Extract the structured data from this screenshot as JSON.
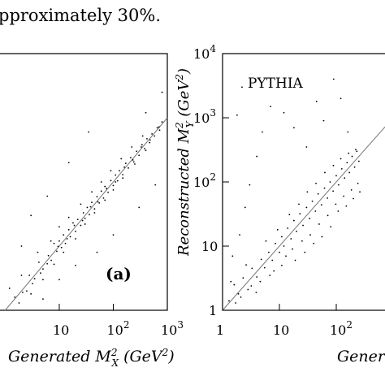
{
  "caption_fragment": "pproximately 30%.",
  "chart_data": [
    {
      "id": "a",
      "type": "scatter",
      "panel_label": "(a)",
      "xlabel": "Generated M_X^2 (GeV^2)",
      "ylabel": "",
      "x_scale": "log",
      "y_scale": "log",
      "xlim": [
        0.8,
        1000
      ],
      "ylim": [
        1,
        10000
      ],
      "x_ticks": [
        {
          "value": 10,
          "base": "10",
          "exp": ""
        },
        {
          "value": 100,
          "base": "10",
          "exp": "2"
        },
        {
          "value": 1000,
          "base": "10",
          "exp": "3"
        }
      ],
      "y_ticks": [],
      "reference_line": "y = x",
      "series": [
        {
          "points": [
            [
              1.5,
              1.6
            ],
            [
              2.1,
              1.9
            ],
            [
              2.8,
              3.5
            ],
            [
              3.5,
              3.1
            ],
            [
              4.2,
              5.6
            ],
            [
              5.0,
              4.4
            ],
            [
              6.3,
              7.1
            ],
            [
              7.1,
              6.0
            ],
            [
              8.0,
              11.0
            ],
            [
              9.0,
              8.3
            ],
            [
              10,
              12
            ],
            [
              11,
              9.5
            ],
            [
              12,
              15
            ],
            [
              13,
              11
            ],
            [
              15,
              18
            ],
            [
              16,
              14
            ],
            [
              18,
              23
            ],
            [
              20,
              17
            ],
            [
              22,
              26
            ],
            [
              25,
              21
            ],
            [
              28,
              33
            ],
            [
              30,
              27
            ],
            [
              33,
              40
            ],
            [
              36,
              31
            ],
            [
              40,
              48
            ],
            [
              45,
              38
            ],
            [
              50,
              59
            ],
            [
              55,
              47
            ],
            [
              60,
              72
            ],
            [
              66,
              56
            ],
            [
              70,
              85
            ],
            [
              80,
              69
            ],
            [
              90,
              105
            ],
            [
              100,
              88
            ],
            [
              110,
              128
            ],
            [
              120,
              104
            ],
            [
              130,
              150
            ],
            [
              150,
              130
            ],
            [
              170,
              195
            ],
            [
              190,
              165
            ],
            [
              210,
              240
            ],
            [
              240,
              205
            ],
            [
              270,
              300
            ],
            [
              300,
              260
            ],
            [
              340,
              380
            ],
            [
              380,
              330
            ],
            [
              420,
              470
            ],
            [
              470,
              410
            ],
            [
              520,
              560
            ],
            [
              580,
              520
            ],
            [
              650,
              700
            ],
            [
              720,
              640
            ],
            [
              800,
              860
            ],
            [
              3,
              1.8
            ],
            [
              5,
              3.0
            ],
            [
              8,
              5.2
            ],
            [
              12,
              8.0
            ],
            [
              20,
              13
            ],
            [
              30,
              22
            ],
            [
              45,
              33
            ],
            [
              70,
              52
            ],
            [
              100,
              75
            ],
            [
              150,
              115
            ],
            [
              250,
              190
            ],
            [
              400,
              310
            ],
            [
              2,
              3.5
            ],
            [
              4,
              8
            ],
            [
              7,
              12
            ],
            [
              10,
              20
            ],
            [
              15,
              28
            ],
            [
              25,
              45
            ],
            [
              40,
              70
            ],
            [
              60,
              100
            ],
            [
              90,
              150
            ],
            [
              140,
              230
            ],
            [
              220,
              350
            ],
            [
              350,
              520
            ],
            [
              1.2,
              2.2
            ],
            [
              1.8,
              1.3
            ],
            [
              2.5,
              2.0
            ],
            [
              3.2,
              2.6
            ],
            [
              4.5,
              3.8
            ],
            [
              6.0,
              5.3
            ],
            [
              9.5,
              9.9
            ],
            [
              14,
              13
            ],
            [
              19,
              21
            ],
            [
              27,
              25
            ],
            [
              38,
              41
            ],
            [
              52,
              49
            ],
            [
              75,
              79
            ],
            [
              110,
              100
            ],
            [
              160,
              170
            ],
            [
              230,
              220
            ],
            [
              330,
              350
            ],
            [
              480,
              450
            ],
            [
              700,
              720
            ],
            [
              5,
              1.5
            ],
            [
              10,
              3
            ],
            [
              20,
              5
            ],
            [
              50,
              8
            ],
            [
              100,
              15
            ],
            [
              300,
              40
            ],
            [
              600,
              90
            ],
            [
              2,
              10
            ],
            [
              3,
              30
            ],
            [
              6,
              60
            ],
            [
              15,
              200
            ],
            [
              35,
              600
            ],
            [
              400,
              1200
            ],
            [
              800,
              2500
            ]
          ]
        }
      ]
    },
    {
      "id": "pythia",
      "type": "scatter",
      "panel_label": "PYTHIA",
      "xlabel": "Generated",
      "ylabel": "Reconstructed M_Y^2 (GeV^2)",
      "x_scale": "log",
      "y_scale": "log",
      "xlim": [
        1,
        1000
      ],
      "ylim": [
        1,
        10000
      ],
      "x_ticks": [
        {
          "value": 1,
          "base": "1",
          "exp": ""
        },
        {
          "value": 10,
          "base": "10",
          "exp": ""
        },
        {
          "value": 100,
          "base": "10",
          "exp": "2"
        }
      ],
      "y_ticks": [
        {
          "value": 1,
          "base": "1",
          "exp": ""
        },
        {
          "value": 10,
          "base": "10",
          "exp": ""
        },
        {
          "value": 100,
          "base": "10",
          "exp": "2"
        },
        {
          "value": 1000,
          "base": "10",
          "exp": "3"
        },
        {
          "value": 10000,
          "base": "10",
          "exp": "4"
        }
      ],
      "reference_line": "y = x",
      "series": [
        {
          "points": [
            [
              1.3,
              1.4
            ],
            [
              1.6,
              2.5
            ],
            [
              1.9,
              1.8
            ],
            [
              2.3,
              3.2
            ],
            [
              2.8,
              2.1
            ],
            [
              3.3,
              4.5
            ],
            [
              4.0,
              3.3
            ],
            [
              4.8,
              6.2
            ],
            [
              5.5,
              4.6
            ],
            [
              6.5,
              8.0
            ],
            [
              7.5,
              6.0
            ],
            [
              8.5,
              11
            ],
            [
              10,
              8
            ],
            [
              11,
              14
            ],
            [
              12,
              10
            ],
            [
              14,
              19
            ],
            [
              16,
              13
            ],
            [
              18,
              25
            ],
            [
              20,
              17
            ],
            [
              23,
              32
            ],
            [
              26,
              21
            ],
            [
              30,
              40
            ],
            [
              34,
              27
            ],
            [
              38,
              50
            ],
            [
              43,
              35
            ],
            [
              48,
              65
            ],
            [
              55,
              44
            ],
            [
              62,
              80
            ],
            [
              70,
              56
            ],
            [
              78,
              100
            ],
            [
              88,
              72
            ],
            [
              100,
              125
            ],
            [
              110,
              90
            ],
            [
              125,
              160
            ],
            [
              140,
              115
            ],
            [
              155,
              200
            ],
            [
              170,
              140
            ],
            [
              190,
              250
            ],
            [
              210,
              170
            ],
            [
              230,
              300
            ],
            [
              250,
              210
            ],
            [
              1.5,
              7
            ],
            [
              2.0,
              15
            ],
            [
              2.5,
              40
            ],
            [
              3.0,
              90
            ],
            [
              4.0,
              250
            ],
            [
              5.0,
              600
            ],
            [
              7.0,
              1500
            ],
            [
              1.8,
              1100
            ],
            [
              2.2,
              3000
            ],
            [
              12,
              1200
            ],
            [
              18,
              700
            ],
            [
              30,
              350
            ],
            [
              45,
              1800
            ],
            [
              60,
              900
            ],
            [
              90,
              4000
            ],
            [
              120,
              2000
            ],
            [
              160,
              600
            ],
            [
              1.4,
              2.8
            ],
            [
              1.7,
              1.3
            ],
            [
              2.1,
              1.6
            ],
            [
              2.6,
              5.1
            ],
            [
              3.2,
              2.4
            ],
            [
              3.9,
              1.9
            ],
            [
              4.6,
              2.8
            ],
            [
              5.8,
              12
            ],
            [
              6.8,
              3.5
            ],
            [
              8.0,
              4.1
            ],
            [
              9.3,
              18
            ],
            [
              11,
              5
            ],
            [
              13,
              7
            ],
            [
              15,
              31
            ],
            [
              17,
              9
            ],
            [
              19,
              6
            ],
            [
              22,
              45
            ],
            [
              25,
              12
            ],
            [
              28,
              8
            ],
            [
              31,
              70
            ],
            [
              35,
              15
            ],
            [
              40,
              11
            ],
            [
              44,
              95
            ],
            [
              50,
              22
            ],
            [
              56,
              14
            ],
            [
              63,
              140
            ],
            [
              71,
              30
            ],
            [
              80,
              20
            ],
            [
              89,
              180
            ],
            [
              98,
              45
            ],
            [
              108,
              35
            ],
            [
              120,
              230
            ],
            [
              135,
              60
            ],
            [
              150,
              42
            ],
            [
              165,
              280
            ],
            [
              185,
              75
            ],
            [
              200,
              55
            ],
            [
              220,
              320
            ],
            [
              240,
              95
            ],
            [
              260,
              70
            ]
          ]
        }
      ]
    }
  ]
}
